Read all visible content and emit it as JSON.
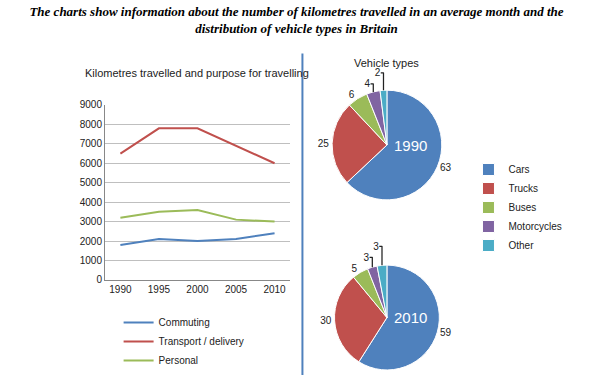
{
  "title": "The charts show information about the number of kilometres travelled in an average month and the distribution of vehicle types in Britain",
  "chart_data": [
    {
      "type": "line",
      "title": "Kilometres travelled and purpose for travelling",
      "x": [
        1990,
        1995,
        2000,
        2005,
        2010
      ],
      "xlim": [
        1988,
        2012
      ],
      "xticks": [
        1990,
        1995,
        2000,
        2005,
        2010
      ],
      "ylim": [
        0,
        9000
      ],
      "yticks": [
        0,
        1000,
        2000,
        3000,
        4000,
        5000,
        6000,
        7000,
        8000,
        9000
      ],
      "grid": true,
      "legend": "bottom",
      "series": [
        {
          "name": "Commuting",
          "color": "#4f81bd",
          "values": [
            1800,
            2100,
            2000,
            2100,
            2400
          ]
        },
        {
          "name": "Transport / delivery",
          "color": "#c0504d",
          "values": [
            6500,
            7800,
            7800,
            6900,
            6000
          ]
        },
        {
          "name": "Personal",
          "color": "#9bbb59",
          "values": [
            3200,
            3500,
            3600,
            3100,
            3000
          ]
        }
      ]
    },
    {
      "type": "pie",
      "title": "Vehicle types",
      "annotations": [
        "1990"
      ],
      "categories": [
        "Cars",
        "Trucks",
        "Buses",
        "Motorcycles",
        "Other"
      ],
      "values": [
        63,
        25,
        6,
        4,
        2
      ],
      "colors": [
        "#4f81bd",
        "#c0504d",
        "#9bbb59",
        "#8064a2",
        "#4bacc6"
      ],
      "data_labels": true,
      "legend": "right"
    },
    {
      "type": "pie",
      "annotations": [
        "2010"
      ],
      "categories": [
        "Cars",
        "Trucks",
        "Buses",
        "Motorcycles",
        "Other"
      ],
      "values": [
        59,
        30,
        5,
        3,
        3
      ],
      "colors": [
        "#4f81bd",
        "#c0504d",
        "#9bbb59",
        "#8064a2",
        "#4bacc6"
      ],
      "data_labels": true
    }
  ]
}
